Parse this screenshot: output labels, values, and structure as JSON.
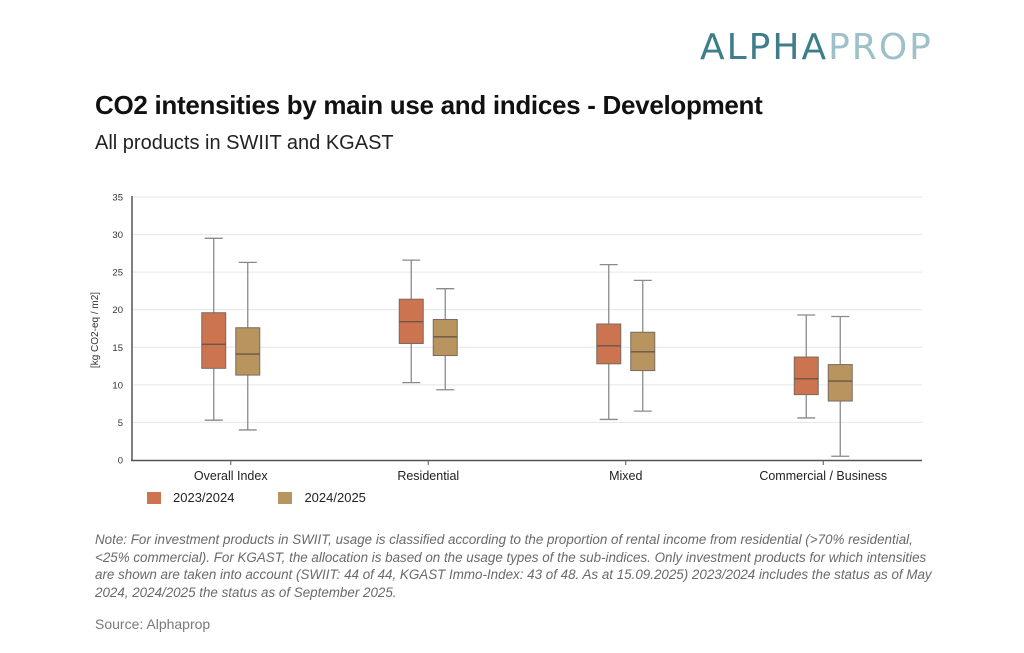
{
  "logo": {
    "part1": "ALPHA",
    "part2": "PROP",
    "color1": "#3e7d8a",
    "color2": "#9ec0c8"
  },
  "header": {
    "title": "CO2 intensities by main use and indices - Development",
    "subtitle": "All products in SWIIT and KGAST"
  },
  "chart_data": {
    "type": "boxplot",
    "title": "CO2 intensities by main use and indices - Development",
    "subtitle": "All products in SWIIT and KGAST",
    "xlabel": "",
    "ylabel": "[kg CO2-eq / m2]",
    "ylim": [
      0,
      35
    ],
    "yticks": [
      0,
      5,
      10,
      15,
      20,
      25,
      30,
      35
    ],
    "grid": true,
    "legend_position": "bottom-left",
    "categories": [
      "Overall Index",
      "Residential",
      "Mixed",
      "Commercial / Business"
    ],
    "series": [
      {
        "name": "2023/2024",
        "color": "#cc7350",
        "boxes": [
          {
            "min": 5.3,
            "q1": 12.2,
            "median": 15.4,
            "q3": 19.6,
            "max": 29.5
          },
          {
            "min": 10.3,
            "q1": 15.5,
            "median": 18.4,
            "q3": 21.4,
            "max": 26.6
          },
          {
            "min": 5.4,
            "q1": 12.8,
            "median": 15.2,
            "q3": 18.1,
            "max": 26.0
          },
          {
            "min": 5.6,
            "q1": 8.7,
            "median": 10.8,
            "q3": 13.7,
            "max": 19.3
          }
        ]
      },
      {
        "name": "2024/2025",
        "color": "#b8955e",
        "boxes": [
          {
            "min": 4.0,
            "q1": 11.3,
            "median": 14.1,
            "q3": 17.6,
            "max": 26.3
          },
          {
            "min": 9.35,
            "q1": 13.9,
            "median": 16.4,
            "q3": 18.7,
            "max": 22.8
          },
          {
            "min": 6.5,
            "q1": 11.9,
            "median": 14.4,
            "q3": 17.0,
            "max": 23.9
          },
          {
            "min": 0.5,
            "q1": 7.85,
            "median": 10.5,
            "q3": 12.7,
            "max": 19.1
          }
        ]
      }
    ]
  },
  "footer": {
    "note": "Note: For investment products in SWIIT, usage is classified according to the proportion of rental income from residential (>70% residential, <25% commercial). For KGAST, the allocation is based on the usage types of the sub-indices. Only investment products for which intensities are shown are taken into account (SWIIT: 44 of 44, KGAST Immo-Index: 43 of 48. As at 15.09.2025) 2023/2024 includes the status as of May 2024, 2024/2025 the status as of September 2025.",
    "source": "Source: Alphaprop"
  }
}
